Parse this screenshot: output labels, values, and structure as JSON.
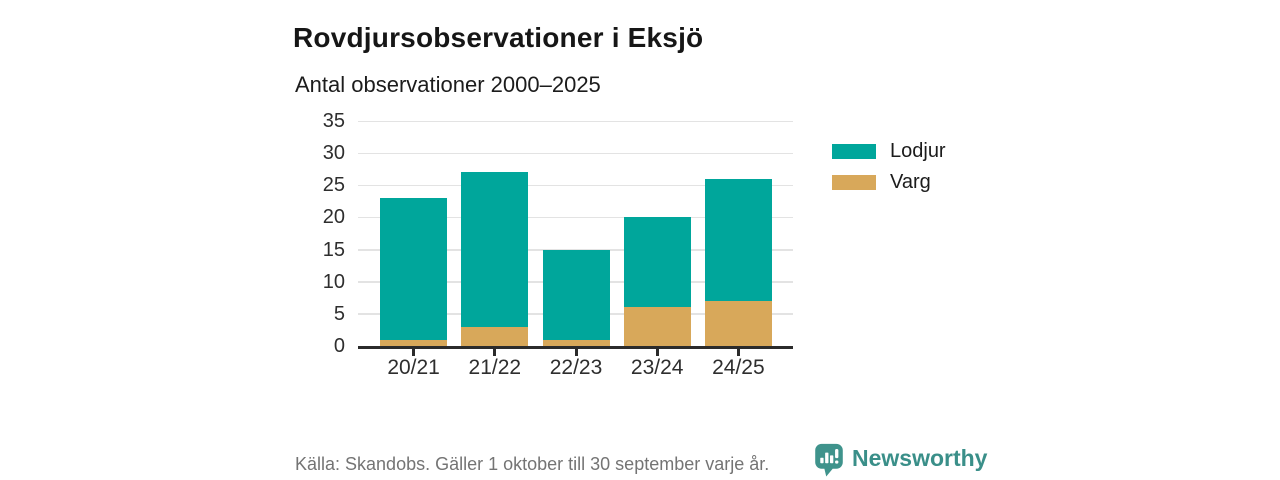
{
  "title": "Rovdjursobservationer i Eksjö",
  "subtitle": "Antal observationer 2000–2025",
  "footer": {
    "source": "Källa: Skandobs. Gäller 1 oktober till 30 september varje år.",
    "brand": "Newsworthy"
  },
  "colors": {
    "lodjur": "#00a69b",
    "varg": "#d8a85a",
    "grid": "#e3e3e3",
    "axis": "#2b2b2b",
    "text": "#1c1c1c",
    "footer_text": "#747474",
    "brand_teal": "#3a8f89"
  },
  "icons": {
    "newsworthy_logo": "speech-bubble-bar-chart-exclamation"
  },
  "chart_data": {
    "type": "bar",
    "stacked": true,
    "categories": [
      "20/21",
      "21/22",
      "22/23",
      "23/24",
      "24/25"
    ],
    "series": [
      {
        "name": "Varg",
        "color": "#d8a85a",
        "values": [
          1,
          3,
          1,
          6,
          7
        ]
      },
      {
        "name": "Lodjur",
        "color": "#00a69b",
        "values": [
          22,
          24,
          14,
          14,
          19
        ]
      }
    ],
    "totals": [
      23,
      27,
      15,
      20,
      26
    ],
    "title": "Rovdjursobservationer i Eksjö",
    "subtitle": "Antal observationer 2000–2025",
    "xlabel": "",
    "ylabel": "",
    "ylim": [
      0,
      35
    ],
    "yticks": [
      0,
      5,
      10,
      15,
      20,
      25,
      30,
      35
    ],
    "grid": true,
    "legend_position": "right"
  }
}
